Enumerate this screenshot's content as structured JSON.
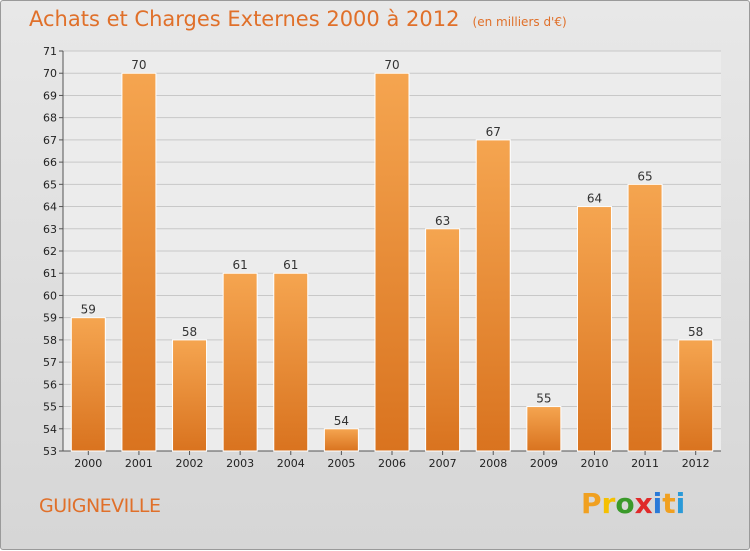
{
  "chart_data": {
    "type": "bar",
    "title": "Achats et Charges Externes 2000 à 2012",
    "unit": "(en milliers d'€)",
    "categories": [
      "2000",
      "2001",
      "2002",
      "2003",
      "2004",
      "2005",
      "2006",
      "2007",
      "2008",
      "2009",
      "2010",
      "2011",
      "2012"
    ],
    "values": [
      59,
      70,
      58,
      61,
      61,
      54,
      70,
      63,
      67,
      55,
      64,
      65,
      58
    ],
    "ylim": [
      53,
      71
    ],
    "y_ticks": [
      53,
      54,
      55,
      56,
      57,
      58,
      59,
      60,
      61,
      62,
      63,
      64,
      65,
      66,
      67,
      68,
      69,
      70,
      71
    ],
    "grid": true,
    "bar_color_top": "#f5a550",
    "bar_color_bottom": "#d9731f"
  },
  "footer": {
    "town": "GUIGNEVILLE",
    "logo_letters": [
      "P",
      "r",
      "o",
      "x",
      "i",
      "t",
      "i"
    ],
    "logo_colors": [
      "#f0a020",
      "#f5c000",
      "#3a9a2a",
      "#e02a2a",
      "#2a7ad8",
      "#f0a020",
      "#2a9ad8"
    ]
  }
}
